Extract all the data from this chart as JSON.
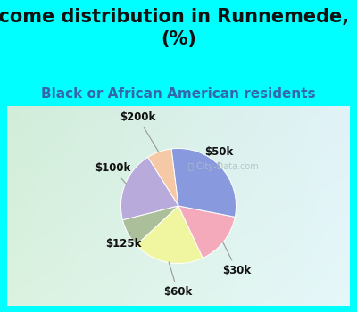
{
  "title": "Income distribution in Runnemede, NJ\n(%)",
  "subtitle": "Black or African American residents",
  "labels": [
    "$200k",
    "$100k",
    "$125k",
    "$60k",
    "$30k",
    "$50k"
  ],
  "sizes": [
    7,
    20,
    8,
    20,
    15,
    30
  ],
  "colors": [
    "#F5C9A5",
    "#B8AADB",
    "#AABF9A",
    "#F0F5A0",
    "#F5AABB",
    "#8899DD"
  ],
  "title_color": "#111111",
  "subtitle_color": "#3366AA",
  "bg_top_color": "#00FFFF",
  "title_fontsize": 15,
  "subtitle_fontsize": 11,
  "label_fontsize": 8.5,
  "startangle": 97
}
